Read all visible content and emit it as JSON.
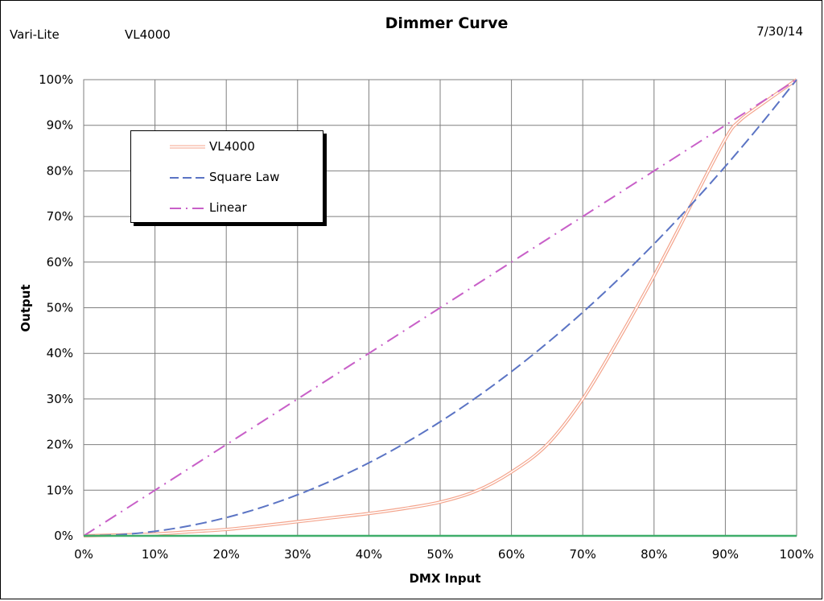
{
  "header": {
    "title": "Dimmer Curve",
    "manufacturer": "Vari-Lite",
    "model": "VL4000",
    "date": "7/30/14"
  },
  "chart_data": {
    "type": "line",
    "title": "Dimmer Curve",
    "xlabel": "DMX Input",
    "ylabel": "Output",
    "xlim": [
      0,
      100
    ],
    "ylim": [
      0,
      100
    ],
    "x_ticks": [
      "0%",
      "10%",
      "20%",
      "30%",
      "40%",
      "50%",
      "60%",
      "70%",
      "80%",
      "90%",
      "100%"
    ],
    "y_ticks": [
      "0%",
      "10%",
      "20%",
      "30%",
      "40%",
      "50%",
      "60%",
      "70%",
      "80%",
      "90%",
      "100%"
    ],
    "grid": true,
    "legend_position": "upper-left",
    "series": [
      {
        "name": "VL4000",
        "color": "#f4a48c",
        "style": "double-solid",
        "x": [
          0,
          5,
          10,
          15,
          20,
          25,
          30,
          35,
          40,
          45,
          50,
          55,
          60,
          65,
          70,
          75,
          80,
          85,
          90,
          92,
          95,
          100
        ],
        "y": [
          0,
          0.2,
          0.4,
          0.9,
          1.4,
          2.2,
          3.1,
          4.0,
          4.9,
          6.0,
          7.4,
          9.8,
          14,
          20,
          30,
          43,
          57,
          72,
          87,
          91,
          94.5,
          100
        ]
      },
      {
        "name": "Square Law",
        "color": "#5b74c4",
        "style": "dashed",
        "x": [
          0,
          5,
          10,
          15,
          20,
          25,
          30,
          35,
          40,
          45,
          50,
          55,
          60,
          65,
          70,
          75,
          80,
          85,
          90,
          95,
          100
        ],
        "y": [
          0,
          0.25,
          1,
          2.25,
          4,
          6.25,
          9,
          12.25,
          16,
          20.25,
          25,
          30.25,
          36,
          42.25,
          49,
          56.25,
          64,
          72.25,
          81,
          90.25,
          100
        ]
      },
      {
        "name": "Linear",
        "color": "#c860c8",
        "style": "dash-dot",
        "x": [
          0,
          10,
          20,
          30,
          40,
          50,
          60,
          70,
          80,
          90,
          100
        ],
        "y": [
          0,
          10,
          20,
          30,
          40,
          50,
          60,
          70,
          80,
          90,
          100
        ]
      },
      {
        "name": "",
        "color": "#3fae6a",
        "style": "solid",
        "x": [
          0,
          100
        ],
        "y": [
          0,
          0
        ]
      }
    ]
  }
}
